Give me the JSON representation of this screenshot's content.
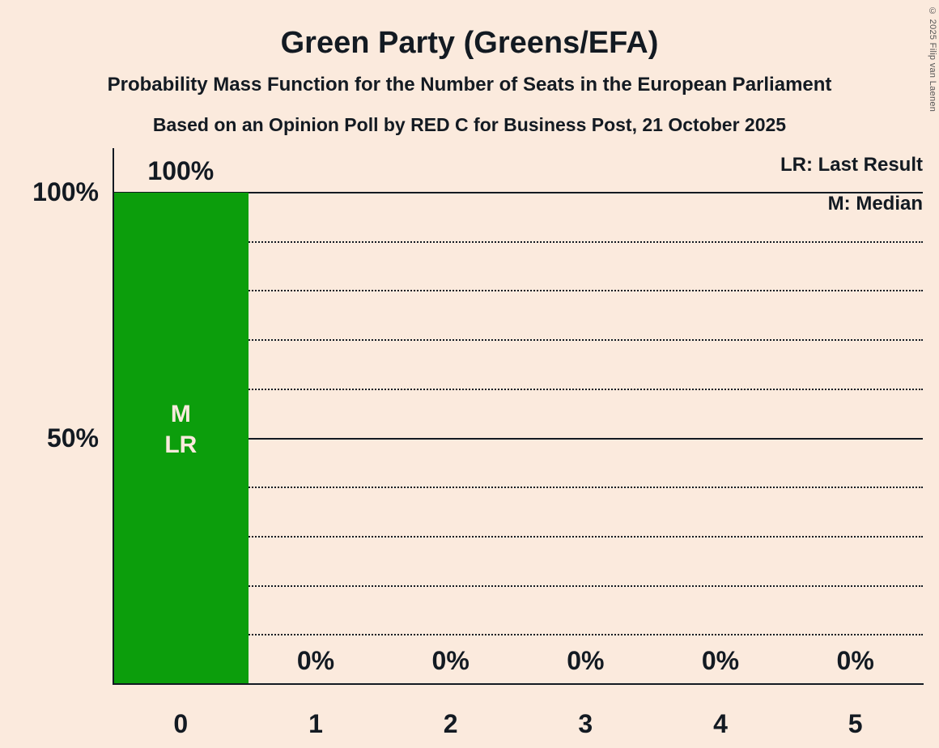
{
  "title": "Green Party (Greens/EFA)",
  "subtitle": "Probability Mass Function for the Number of Seats in the European Parliament",
  "poll_info": "Based on an Opinion Poll by RED C for Business Post, 21 October 2025",
  "copyright": "© 2025 Filip van Laenen",
  "legend": {
    "lr": "LR: Last Result",
    "m": "M: Median"
  },
  "colors": {
    "background": "#fbeadd",
    "bar": "#0c9e0c",
    "text": "#131a22"
  },
  "chart_data": {
    "type": "bar",
    "title": "Green Party (Greens/EFA)",
    "categories": [
      "0",
      "1",
      "2",
      "3",
      "4",
      "5"
    ],
    "values": [
      100,
      0,
      0,
      0,
      0,
      0
    ],
    "value_labels": [
      "100%",
      "0%",
      "0%",
      "0%",
      "0%",
      "0%"
    ],
    "xlabel": "",
    "ylabel": "",
    "ylim": [
      0,
      100
    ],
    "yticks": [
      {
        "value": 50,
        "label": "50%"
      },
      {
        "value": 100,
        "label": "100%"
      }
    ],
    "gridlines": {
      "solid": [
        50,
        100
      ],
      "dotted": [
        10,
        20,
        30,
        40,
        60,
        70,
        80,
        90
      ]
    },
    "bar_annotations": [
      {
        "category": "0",
        "lines": [
          "M",
          "LR"
        ]
      }
    ],
    "median_seats": 0,
    "last_result_seats": 0,
    "legend_position": "top-right",
    "grid": true
  }
}
